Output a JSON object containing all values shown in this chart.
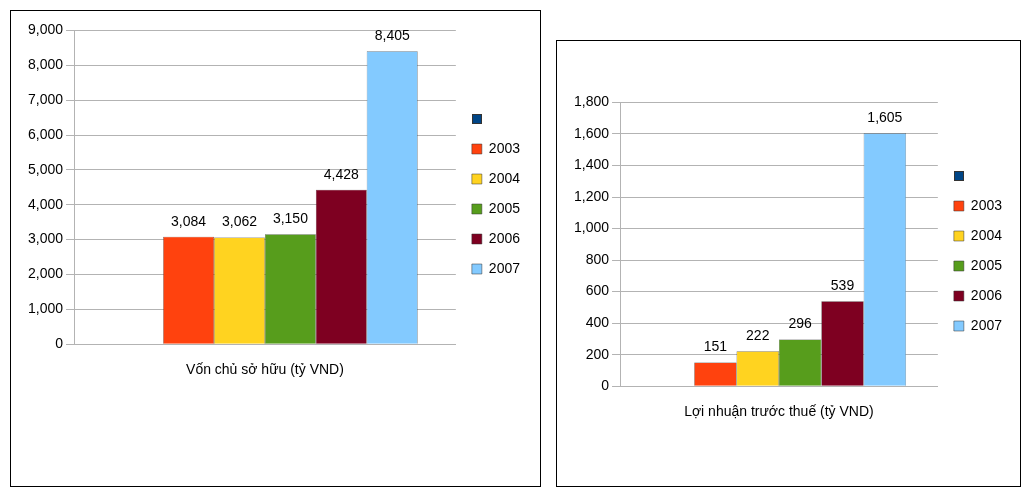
{
  "chart_data": [
    {
      "type": "bar",
      "categories": [
        "Vốn chủ sở hữu (tỷ VND)"
      ],
      "series": [
        {
          "color": "#004586",
          "values": [
            null
          ]
        },
        {
          "name": "2003",
          "color": "#ff420e",
          "values": [
            3084
          ],
          "value_labels": [
            "3,084"
          ]
        },
        {
          "name": "2004",
          "color": "#ffd320",
          "values": [
            3062
          ],
          "value_labels": [
            "3,062"
          ]
        },
        {
          "name": "2005",
          "color": "#579d1c",
          "values": [
            3150
          ],
          "value_labels": [
            "3,150"
          ]
        },
        {
          "name": "2006",
          "color": "#7e0021",
          "values": [
            4428
          ],
          "value_labels": [
            "4,428"
          ]
        },
        {
          "name": "2007",
          "color": "#83caff",
          "values": [
            8405
          ],
          "value_labels": [
            "8,405"
          ]
        }
      ],
      "ylim": [
        0,
        9000
      ],
      "yticks": [
        0,
        {
          "value": 1000,
          "label": "1,000"
        },
        {
          "value": 2000,
          "label": "2,000"
        },
        {
          "value": 3000,
          "label": "3,000"
        },
        {
          "value": 4000,
          "label": "4,000"
        },
        {
          "value": 5000,
          "label": "5,000"
        },
        {
          "value": 6000,
          "label": "6,000"
        },
        {
          "value": 7000,
          "label": "7,000"
        },
        {
          "value": 8000,
          "label": "8,000"
        },
        {
          "value": 9000,
          "label": "9,000"
        }
      ],
      "grid": "y",
      "legend": "right"
    },
    {
      "type": "bar",
      "categories": [
        "Lợi nhuận trước thuế (tỷ VND)"
      ],
      "series": [
        {
          "color": "#004586",
          "values": [
            null
          ]
        },
        {
          "name": "2003",
          "color": "#ff420e",
          "values": [
            151
          ],
          "value_labels": [
            "151"
          ]
        },
        {
          "name": "2004",
          "color": "#ffd320",
          "values": [
            222
          ],
          "value_labels": [
            "222"
          ]
        },
        {
          "name": "2005",
          "color": "#579d1c",
          "values": [
            296
          ],
          "value_labels": [
            "296"
          ]
        },
        {
          "name": "2006",
          "color": "#7e0021",
          "values": [
            539
          ],
          "value_labels": [
            "539"
          ]
        },
        {
          "name": "2007",
          "color": "#83caff",
          "values": [
            1605
          ],
          "value_labels": [
            "1,605"
          ]
        }
      ],
      "ylim": [
        0,
        1800
      ],
      "yticks": [
        0,
        200,
        400,
        600,
        800,
        {
          "value": 1000,
          "label": "1,000"
        },
        {
          "value": 1200,
          "label": "1,200"
        },
        {
          "value": 1400,
          "label": "1,400"
        },
        {
          "value": 1600,
          "label": "1,600"
        },
        {
          "value": 1800,
          "label": "1,800"
        }
      ],
      "grid": "y",
      "legend": "right"
    }
  ]
}
